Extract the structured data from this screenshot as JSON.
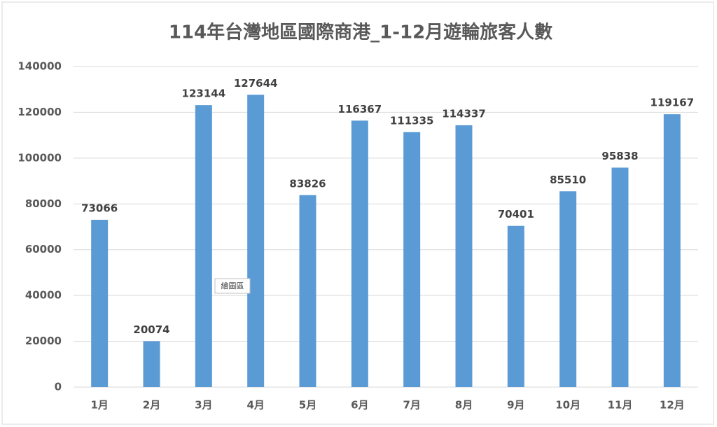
{
  "chart_data": {
    "type": "bar",
    "title": "114年台灣地區國際商港_1-12月遊輪旅客人數",
    "categories": [
      "1月",
      "2月",
      "3月",
      "4月",
      "5月",
      "6月",
      "7月",
      "8月",
      "9月",
      "10月",
      "11月",
      "12月"
    ],
    "values": [
      73066,
      20074,
      123144,
      127644,
      83826,
      116367,
      111335,
      114337,
      70401,
      85510,
      95838,
      119167
    ],
    "color": "#5b9bd5",
    "ylim": [
      0,
      140000
    ],
    "yticks": [
      0,
      20000,
      40000,
      60000,
      80000,
      100000,
      120000,
      140000
    ],
    "grid": true,
    "data_labels": true,
    "tooltip": "繪圖區"
  }
}
